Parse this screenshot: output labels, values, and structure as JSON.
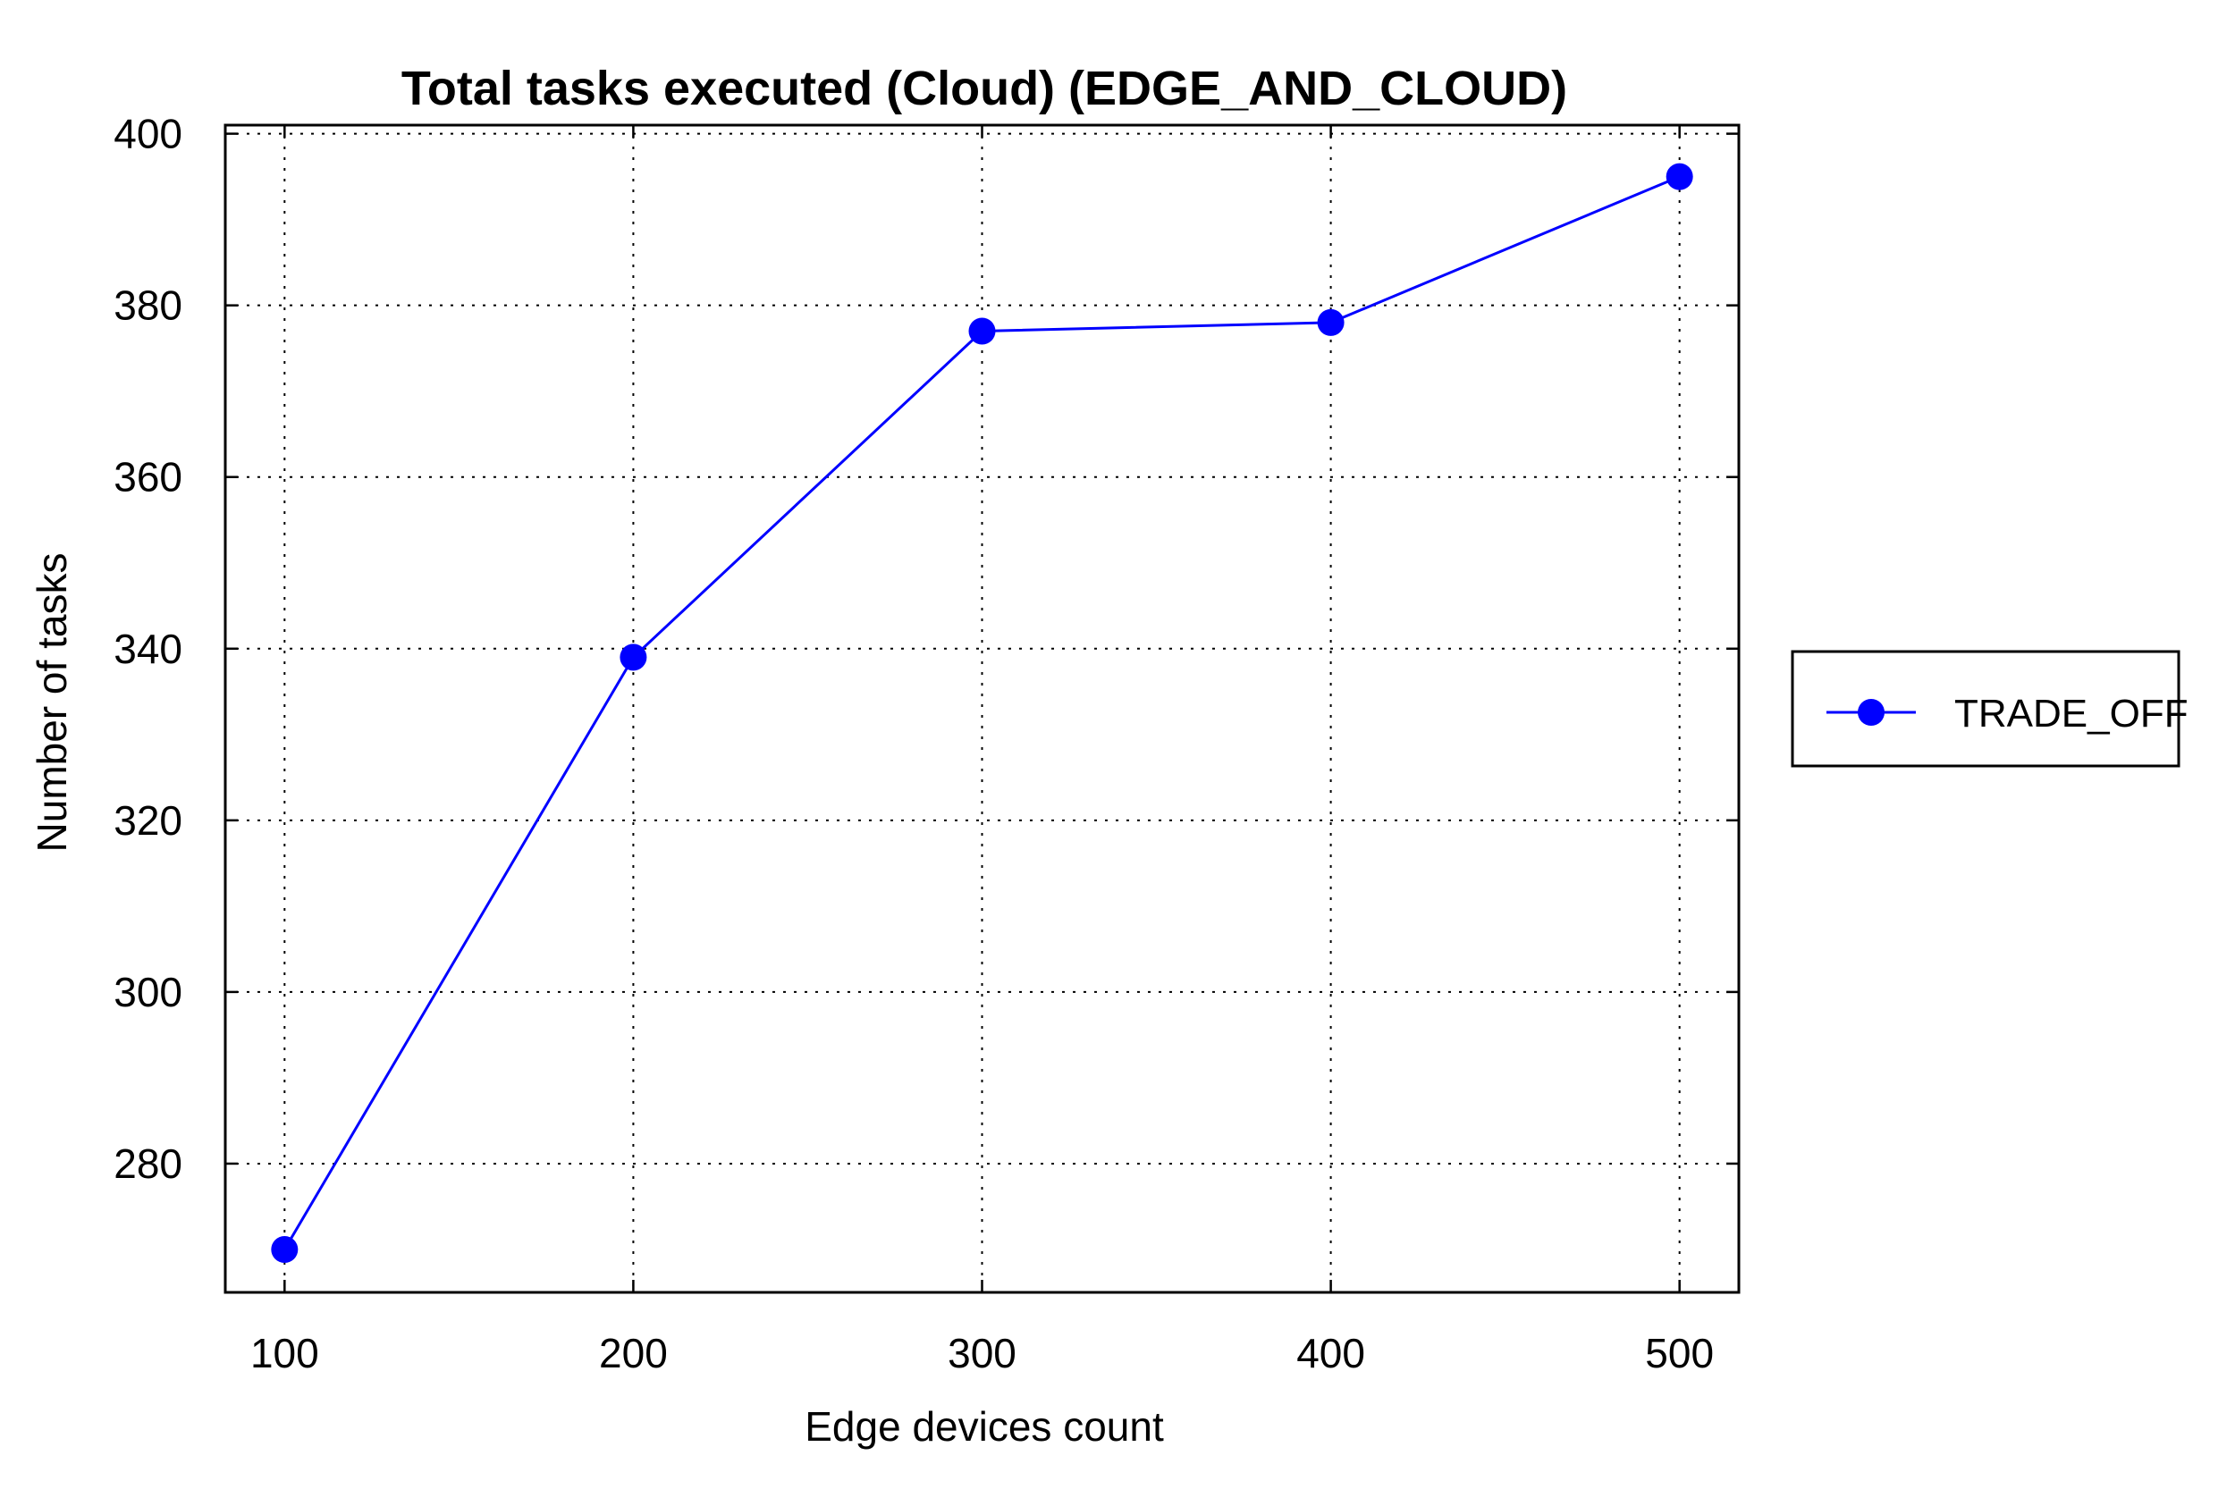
{
  "chart_data": {
    "type": "line",
    "title": "Total tasks executed (Cloud) (EDGE_AND_CLOUD)",
    "xlabel": "Edge devices count",
    "ylabel": "Number of tasks",
    "x": [
      100,
      200,
      300,
      400,
      500
    ],
    "x_ticks": [
      "100",
      "200",
      "300",
      "400",
      "500"
    ],
    "xlim": [
      83,
      517
    ],
    "ylim": [
      265,
      401
    ],
    "y_ticks": [
      280,
      300,
      320,
      340,
      360,
      380,
      400
    ],
    "grid": true,
    "legend_position": "outside-right",
    "series": [
      {
        "name": "TRADE_OFF",
        "values": [
          270,
          339,
          377,
          378,
          395
        ],
        "color": "#0000ff",
        "marker": "circle"
      }
    ]
  }
}
